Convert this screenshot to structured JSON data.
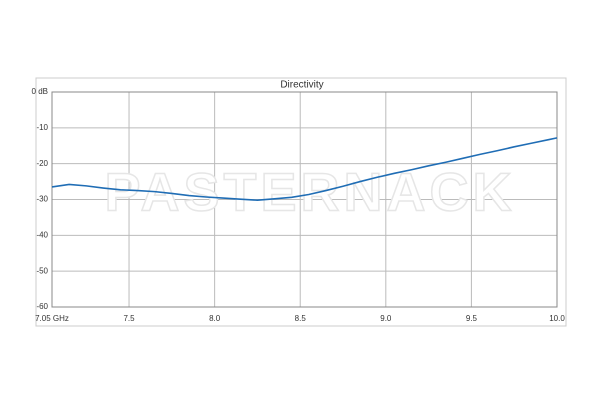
{
  "chart_data": {
    "type": "line",
    "title": "Directivity",
    "watermark": "PASTERNACK",
    "x": [
      7.05,
      7.15,
      7.25,
      7.35,
      7.45,
      7.55,
      7.65,
      7.75,
      7.85,
      7.95,
      8.05,
      8.15,
      8.25,
      8.35,
      8.45,
      8.55,
      8.65,
      8.75,
      8.85,
      8.95,
      9.05,
      9.15,
      9.25,
      9.35,
      9.45,
      9.55,
      9.65,
      9.75,
      9.85,
      9.95,
      10.0
    ],
    "series": [
      {
        "color": "#1f6db5",
        "values": [
          -26.5,
          -25.8,
          -26.2,
          -26.8,
          -27.3,
          -27.5,
          -27.8,
          -28.3,
          -28.9,
          -29.3,
          -29.6,
          -29.9,
          -30.2,
          -29.8,
          -29.4,
          -28.6,
          -27.5,
          -26.3,
          -25.0,
          -23.8,
          -22.7,
          -21.7,
          -20.6,
          -19.6,
          -18.5,
          -17.4,
          -16.4,
          -15.3,
          -14.3,
          -13.3,
          -12.8
        ]
      }
    ],
    "xlim": [
      7.05,
      10.0
    ],
    "xticks": [
      {
        "value": 7.05,
        "label": "7.05 GHz"
      },
      7.5,
      {
        "value": 8.0,
        "label": "8.0"
      },
      8.5,
      {
        "value": 9.0,
        "label": "9.0"
      },
      9.5,
      {
        "value": 10.0,
        "label": "10.0"
      }
    ],
    "ylim": [
      -60,
      0
    ],
    "yticks": [
      {
        "value": 0,
        "label": "0 dB"
      },
      -10,
      -20,
      -30,
      -40,
      -50,
      -60
    ],
    "grid": true
  }
}
